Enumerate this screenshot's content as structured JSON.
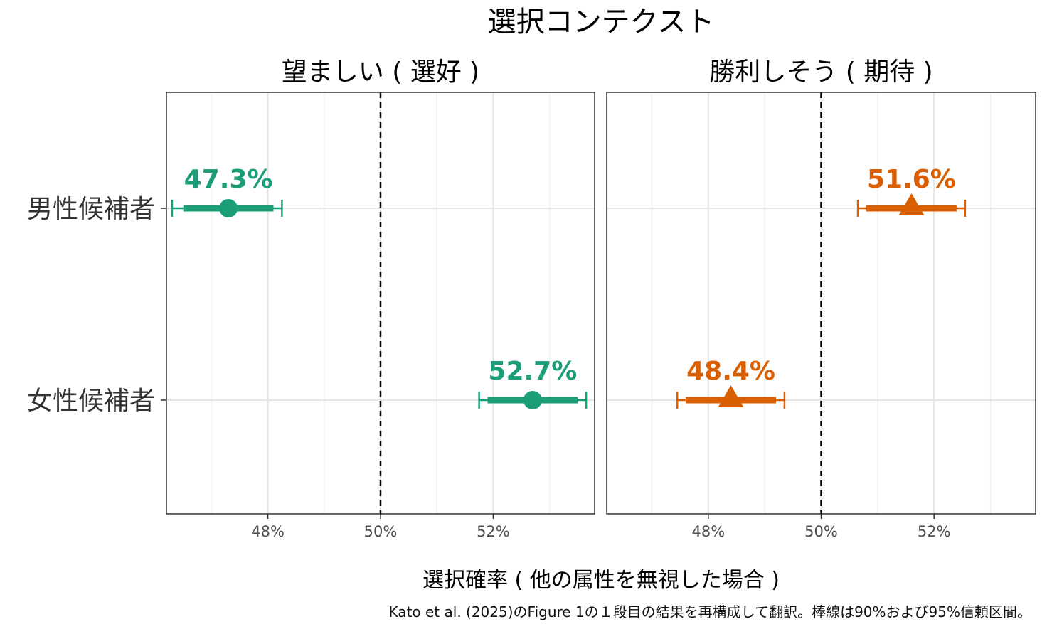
{
  "chart_data": {
    "type": "scatter",
    "title": "選択コンテクスト",
    "xlabel": "選択確率 ( 他の属性を無視した場合 )",
    "caption": "Kato et al. (2025)のFigure 1の１段目の結果を再構成して翻訳。棒線は90%および95%信頼区間。",
    "categories": [
      "男性候補者",
      "女性候補者"
    ],
    "xlim": [
      46.2,
      53.8
    ],
    "xticks": [
      48,
      50,
      52
    ],
    "xtick_labels": [
      "48%",
      "50%",
      "52%"
    ],
    "minor_gridlines": [
      47,
      49,
      51,
      53
    ],
    "reference_line": 50,
    "grid": true,
    "panels": [
      {
        "label": "望ましい ( 選好 )",
        "color": "#1b9e77",
        "marker": "circle",
        "points": [
          {
            "category": "男性候補者",
            "estimate": 47.3,
            "ci90": [
              46.5,
              48.1
            ],
            "ci95": [
              46.3,
              48.25
            ],
            "label": "47.3%"
          },
          {
            "category": "女性候補者",
            "estimate": 52.7,
            "ci90": [
              51.9,
              53.5
            ],
            "ci95": [
              51.75,
              53.65
            ],
            "label": "52.7%"
          }
        ]
      },
      {
        "label": "勝利しそう ( 期待 )",
        "color": "#d95f02",
        "marker": "triangle",
        "points": [
          {
            "category": "男性候補者",
            "estimate": 51.6,
            "ci90": [
              50.8,
              52.4
            ],
            "ci95": [
              50.65,
              52.55
            ],
            "label": "51.6%"
          },
          {
            "category": "女性候補者",
            "estimate": 48.4,
            "ci90": [
              47.6,
              49.2
            ],
            "ci95": [
              47.45,
              49.35
            ],
            "label": "48.4%"
          }
        ]
      }
    ]
  }
}
